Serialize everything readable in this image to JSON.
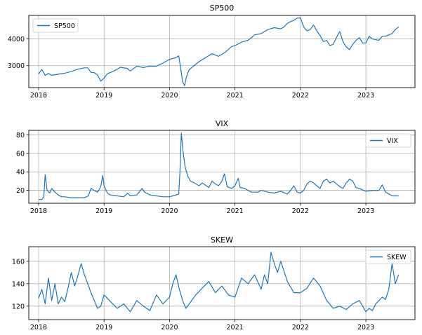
{
  "chart_data": [
    {
      "type": "line",
      "title": "SP500",
      "xlabel": "",
      "ylabel": "",
      "x_ticks": [
        "2018",
        "2019",
        "2020",
        "2021",
        "2022",
        "2023"
      ],
      "xlim": [
        2017.85,
        2023.75
      ],
      "y_ticks": [
        3000,
        4000
      ],
      "ylim": [
        2180,
        4880
      ],
      "grid": true,
      "legend_position": "top-left",
      "series": [
        {
          "name": "SP500",
          "color": "#1f77b4",
          "x": [
            2018.0,
            2018.05,
            2018.1,
            2018.15,
            2018.2,
            2018.3,
            2018.4,
            2018.5,
            2018.6,
            2018.7,
            2018.75,
            2018.8,
            2018.85,
            2018.9,
            2018.95,
            2019.0,
            2019.05,
            2019.15,
            2019.25,
            2019.35,
            2019.4,
            2019.5,
            2019.6,
            2019.7,
            2019.8,
            2019.9,
            2020.0,
            2020.1,
            2020.14,
            2020.17,
            2020.2,
            2020.23,
            2020.26,
            2020.3,
            2020.35,
            2020.45,
            2020.55,
            2020.65,
            2020.75,
            2020.85,
            2020.95,
            2021.0,
            2021.1,
            2021.2,
            2021.3,
            2021.4,
            2021.5,
            2021.6,
            2021.7,
            2021.75,
            2021.8,
            2021.85,
            2021.9,
            2021.95,
            2022.0,
            2022.05,
            2022.1,
            2022.15,
            2022.2,
            2022.25,
            2022.3,
            2022.35,
            2022.4,
            2022.45,
            2022.5,
            2022.55,
            2022.6,
            2022.65,
            2022.7,
            2022.75,
            2022.8,
            2022.85,
            2022.9,
            2022.95,
            2023.0,
            2023.05,
            2023.1,
            2023.15,
            2023.2,
            2023.25,
            2023.3,
            2023.35,
            2023.4,
            2023.45,
            2023.5
          ],
          "y": [
            2690,
            2860,
            2640,
            2710,
            2640,
            2680,
            2720,
            2780,
            2870,
            2920,
            2920,
            2750,
            2740,
            2650,
            2420,
            2530,
            2700,
            2800,
            2940,
            2900,
            2800,
            2980,
            2930,
            2980,
            2980,
            3100,
            3240,
            3300,
            3370,
            2900,
            2400,
            2250,
            2600,
            2850,
            2950,
            3150,
            3300,
            3450,
            3350,
            3500,
            3720,
            3750,
            3880,
            3950,
            4150,
            4200,
            4350,
            4420,
            4380,
            4450,
            4580,
            4650,
            4700,
            4780,
            4790,
            4450,
            4300,
            4350,
            4520,
            4300,
            4130,
            3900,
            3950,
            3750,
            3800,
            4050,
            4280,
            3900,
            3700,
            3600,
            3800,
            3950,
            4050,
            3850,
            3850,
            4100,
            4000,
            3970,
            3950,
            4100,
            4100,
            4150,
            4200,
            4350,
            4450
          ]
        }
      ]
    },
    {
      "type": "line",
      "title": "VIX",
      "xlabel": "",
      "ylabel": "",
      "x_ticks": [
        "2018",
        "2019",
        "2020",
        "2021",
        "2022",
        "2023"
      ],
      "xlim": [
        2017.85,
        2023.75
      ],
      "y_ticks": [
        20,
        40,
        60,
        80
      ],
      "ylim": [
        6,
        85
      ],
      "grid": true,
      "legend_position": "top-right",
      "series": [
        {
          "name": "VIX",
          "color": "#1f77b4",
          "x": [
            2018.0,
            2018.05,
            2018.08,
            2018.1,
            2018.13,
            2018.17,
            2018.2,
            2018.25,
            2018.3,
            2018.35,
            2018.4,
            2018.5,
            2018.6,
            2018.7,
            2018.76,
            2018.8,
            2018.85,
            2018.9,
            2018.95,
            2018.98,
            2019.0,
            2019.05,
            2019.1,
            2019.2,
            2019.3,
            2019.36,
            2019.4,
            2019.5,
            2019.58,
            2019.62,
            2019.7,
            2019.8,
            2019.9,
            2020.0,
            2020.05,
            2020.1,
            2020.14,
            2020.16,
            2020.18,
            2020.21,
            2020.24,
            2020.28,
            2020.32,
            2020.38,
            2020.45,
            2020.5,
            2020.6,
            2020.65,
            2020.7,
            2020.75,
            2020.8,
            2020.84,
            2020.88,
            2020.95,
            2021.0,
            2021.05,
            2021.08,
            2021.15,
            2021.25,
            2021.35,
            2021.4,
            2021.5,
            2021.6,
            2021.7,
            2021.8,
            2021.85,
            2021.9,
            2021.95,
            2022.0,
            2022.05,
            2022.1,
            2022.15,
            2022.2,
            2022.3,
            2022.35,
            2022.4,
            2022.45,
            2022.5,
            2022.6,
            2022.65,
            2022.7,
            2022.75,
            2022.8,
            2022.85,
            2022.9,
            2023.0,
            2023.1,
            2023.2,
            2023.25,
            2023.3,
            2023.4,
            2023.5
          ],
          "y": [
            10,
            10,
            13,
            37,
            20,
            17,
            22,
            18,
            15,
            13,
            13,
            12,
            12,
            12,
            14,
            22,
            20,
            18,
            24,
            36,
            25,
            17,
            15,
            14,
            13,
            17,
            14,
            15,
            22,
            18,
            15,
            14,
            13,
            13,
            14,
            15,
            16,
            40,
            82,
            60,
            45,
            35,
            30,
            28,
            25,
            28,
            23,
            30,
            27,
            25,
            30,
            38,
            24,
            22,
            25,
            33,
            23,
            22,
            18,
            18,
            20,
            18,
            17,
            19,
            16,
            20,
            25,
            18,
            17,
            20,
            27,
            30,
            28,
            22,
            30,
            32,
            28,
            30,
            24,
            22,
            28,
            32,
            30,
            23,
            22,
            19,
            20,
            20,
            26,
            18,
            14,
            14
          ]
        }
      ]
    },
    {
      "type": "line",
      "title": "SKEW",
      "xlabel": "",
      "ylabel": "",
      "x_ticks": [
        "2018",
        "2019",
        "2020",
        "2021",
        "2022",
        "2023"
      ],
      "xlim": [
        2017.85,
        2023.75
      ],
      "y_ticks": [
        120,
        140,
        160
      ],
      "ylim": [
        108,
        173
      ],
      "grid": true,
      "legend_position": "top-right",
      "series": [
        {
          "name": "SKEW",
          "color": "#1f77b4",
          "x": [
            2018.0,
            2018.05,
            2018.1,
            2018.15,
            2018.2,
            2018.25,
            2018.3,
            2018.35,
            2018.4,
            2018.45,
            2018.5,
            2018.55,
            2018.6,
            2018.65,
            2018.7,
            2018.75,
            2018.8,
            2018.85,
            2018.9,
            2018.95,
            2019.0,
            2019.1,
            2019.2,
            2019.3,
            2019.4,
            2019.5,
            2019.6,
            2019.7,
            2019.8,
            2019.9,
            2020.0,
            2020.05,
            2020.1,
            2020.15,
            2020.2,
            2020.25,
            2020.3,
            2020.4,
            2020.5,
            2020.6,
            2020.7,
            2020.8,
            2020.9,
            2021.0,
            2021.1,
            2021.2,
            2021.3,
            2021.4,
            2021.45,
            2021.5,
            2021.55,
            2021.6,
            2021.65,
            2021.7,
            2021.8,
            2021.9,
            2022.0,
            2022.1,
            2022.2,
            2022.3,
            2022.4,
            2022.5,
            2022.6,
            2022.7,
            2022.8,
            2022.9,
            2023.0,
            2023.05,
            2023.1,
            2023.15,
            2023.2,
            2023.25,
            2023.3,
            2023.35,
            2023.4,
            2023.45,
            2023.5
          ],
          "y": [
            127,
            135,
            122,
            145,
            125,
            140,
            122,
            128,
            124,
            136,
            150,
            138,
            147,
            158,
            148,
            140,
            132,
            125,
            118,
            120,
            130,
            124,
            118,
            122,
            115,
            125,
            120,
            116,
            130,
            122,
            128,
            140,
            148,
            135,
            125,
            118,
            122,
            130,
            136,
            142,
            132,
            138,
            130,
            128,
            145,
            140,
            148,
            135,
            148,
            140,
            168,
            158,
            150,
            160,
            142,
            132,
            132,
            136,
            145,
            138,
            125,
            118,
            120,
            117,
            122,
            125,
            115,
            118,
            116,
            122,
            125,
            128,
            126,
            135,
            158,
            140,
            148
          ]
        }
      ]
    }
  ]
}
